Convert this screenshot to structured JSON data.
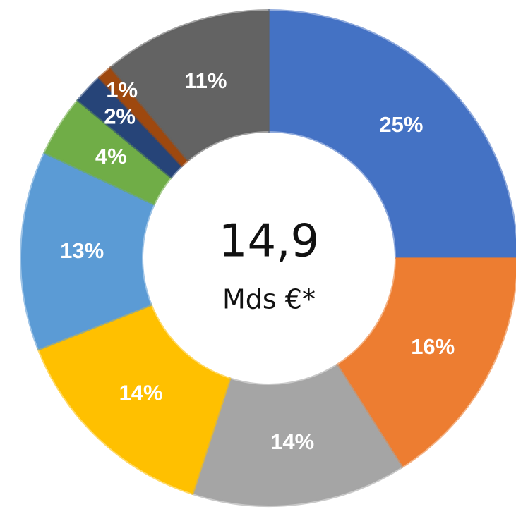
{
  "chart_data": {
    "type": "donut",
    "values": [
      25,
      16,
      14,
      14,
      13,
      4,
      2,
      1,
      11
    ],
    "value_labels": [
      "25%",
      "16%",
      "14%",
      "14%",
      "13%",
      "4%",
      "2%",
      "1%",
      "11%"
    ],
    "colors": [
      "#4472c4",
      "#ed7d31",
      "#a5a5a5",
      "#ffc000",
      "#5b9bd5",
      "#70ad47",
      "#264478",
      "#9e480e",
      "#636363"
    ],
    "center_value": "14,9",
    "center_unit": "Mds €*"
  }
}
